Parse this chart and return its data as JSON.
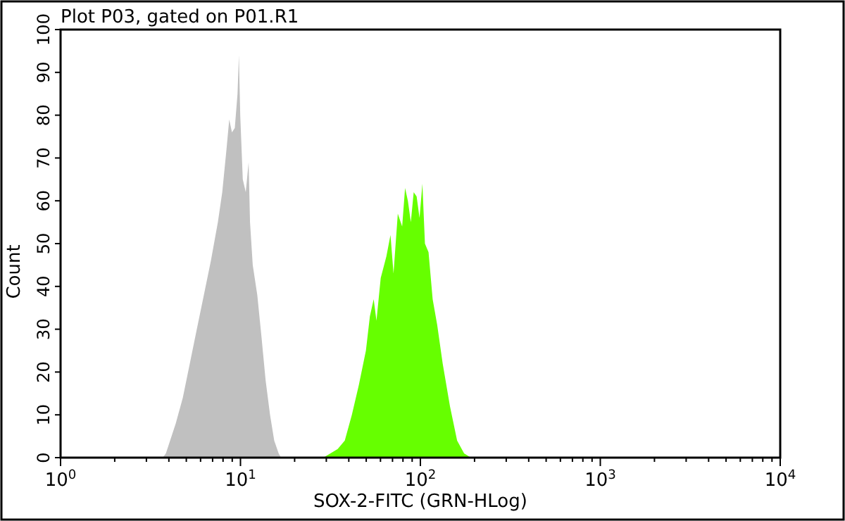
{
  "chart_data": {
    "type": "area",
    "title": "Plot P03, gated on P01.R1",
    "xlabel": "SOX-2-FITC (GRN-HLog)",
    "ylabel": "Count",
    "log": "x",
    "grid": false,
    "xlim": [
      1,
      10000
    ],
    "ylim": [
      0,
      100
    ],
    "xticks": [
      {
        "value": 1,
        "label": "10$^{0}$"
      },
      {
        "value": 2,
        "label": null
      },
      {
        "value": 3,
        "label": null
      },
      {
        "value": 4,
        "label": null
      },
      {
        "value": 5,
        "label": null
      },
      {
        "value": 6,
        "label": null
      },
      {
        "value": 7,
        "label": null
      },
      {
        "value": 8,
        "label": null
      },
      {
        "value": 9,
        "label": null
      },
      {
        "value": 10,
        "label": "10$^{1}$"
      },
      {
        "value": 20,
        "label": null
      },
      {
        "value": 30,
        "label": null
      },
      {
        "value": 40,
        "label": null
      },
      {
        "value": 50,
        "label": null
      },
      {
        "value": 60,
        "label": null
      },
      {
        "value": 70,
        "label": null
      },
      {
        "value": 80,
        "label": null
      },
      {
        "value": 90,
        "label": null
      },
      {
        "value": 100,
        "label": "10$^{2}$"
      },
      {
        "value": 200,
        "label": null
      },
      {
        "value": 300,
        "label": null
      },
      {
        "value": 400,
        "label": null
      },
      {
        "value": 500,
        "label": null
      },
      {
        "value": 600,
        "label": null
      },
      {
        "value": 700,
        "label": null
      },
      {
        "value": 800,
        "label": null
      },
      {
        "value": 900,
        "label": null
      },
      {
        "value": 1000,
        "label": "10$^{3}$"
      },
      {
        "value": 2000,
        "label": null
      },
      {
        "value": 3000,
        "label": null
      },
      {
        "value": 4000,
        "label": null
      },
      {
        "value": 5000,
        "label": null
      },
      {
        "value": 6000,
        "label": null
      },
      {
        "value": 7000,
        "label": null
      },
      {
        "value": 8000,
        "label": null
      },
      {
        "value": 9000,
        "label": null
      },
      {
        "value": 10000,
        "label": "10$^{4}$"
      }
    ],
    "yticks": [
      0,
      10,
      20,
      30,
      40,
      50,
      60,
      70,
      80,
      90,
      100
    ],
    "series": [
      {
        "color": "#c0c0c0",
        "x": [
          3.7,
          3.85,
          4.14,
          4.37,
          4.78,
          5.23,
          5.72,
          6.26,
          6.85,
          7.49,
          7.92,
          8.36,
          8.66,
          8.97,
          9.3,
          9.63,
          9.8,
          9.97,
          10.3,
          10.7,
          11.1,
          11.3,
          11.7,
          12.4,
          13.1,
          13.8,
          14.6,
          15.4,
          16.3,
          16.8
        ],
        "values": [
          0,
          1,
          5,
          8,
          14,
          22,
          30,
          38,
          46,
          55,
          62,
          72,
          79,
          76,
          77,
          85,
          94,
          80,
          65,
          62,
          69,
          55,
          45,
          38,
          28,
          18,
          10,
          4,
          1,
          0
        ]
      },
      {
        "color": "#66ff00",
        "x": [
          28.9,
          34.7,
          38,
          41.6,
          45.5,
          49.8,
          52.4,
          55,
          57,
          60.2,
          64.7,
          68.2,
          70.9,
          74.9,
          79.2,
          82.2,
          85.2,
          88.5,
          91.8,
          95.3,
          98.9,
          102.6,
          106,
          111,
          117,
          124,
          133,
          146,
          160,
          175,
          191
        ],
        "values": [
          0,
          2,
          4,
          10,
          17,
          25,
          33,
          37,
          32,
          42,
          47,
          52,
          43,
          57,
          54,
          63,
          60,
          55,
          62,
          61,
          56,
          64,
          50,
          48,
          37,
          31,
          22,
          12,
          4,
          1,
          0
        ]
      }
    ]
  }
}
